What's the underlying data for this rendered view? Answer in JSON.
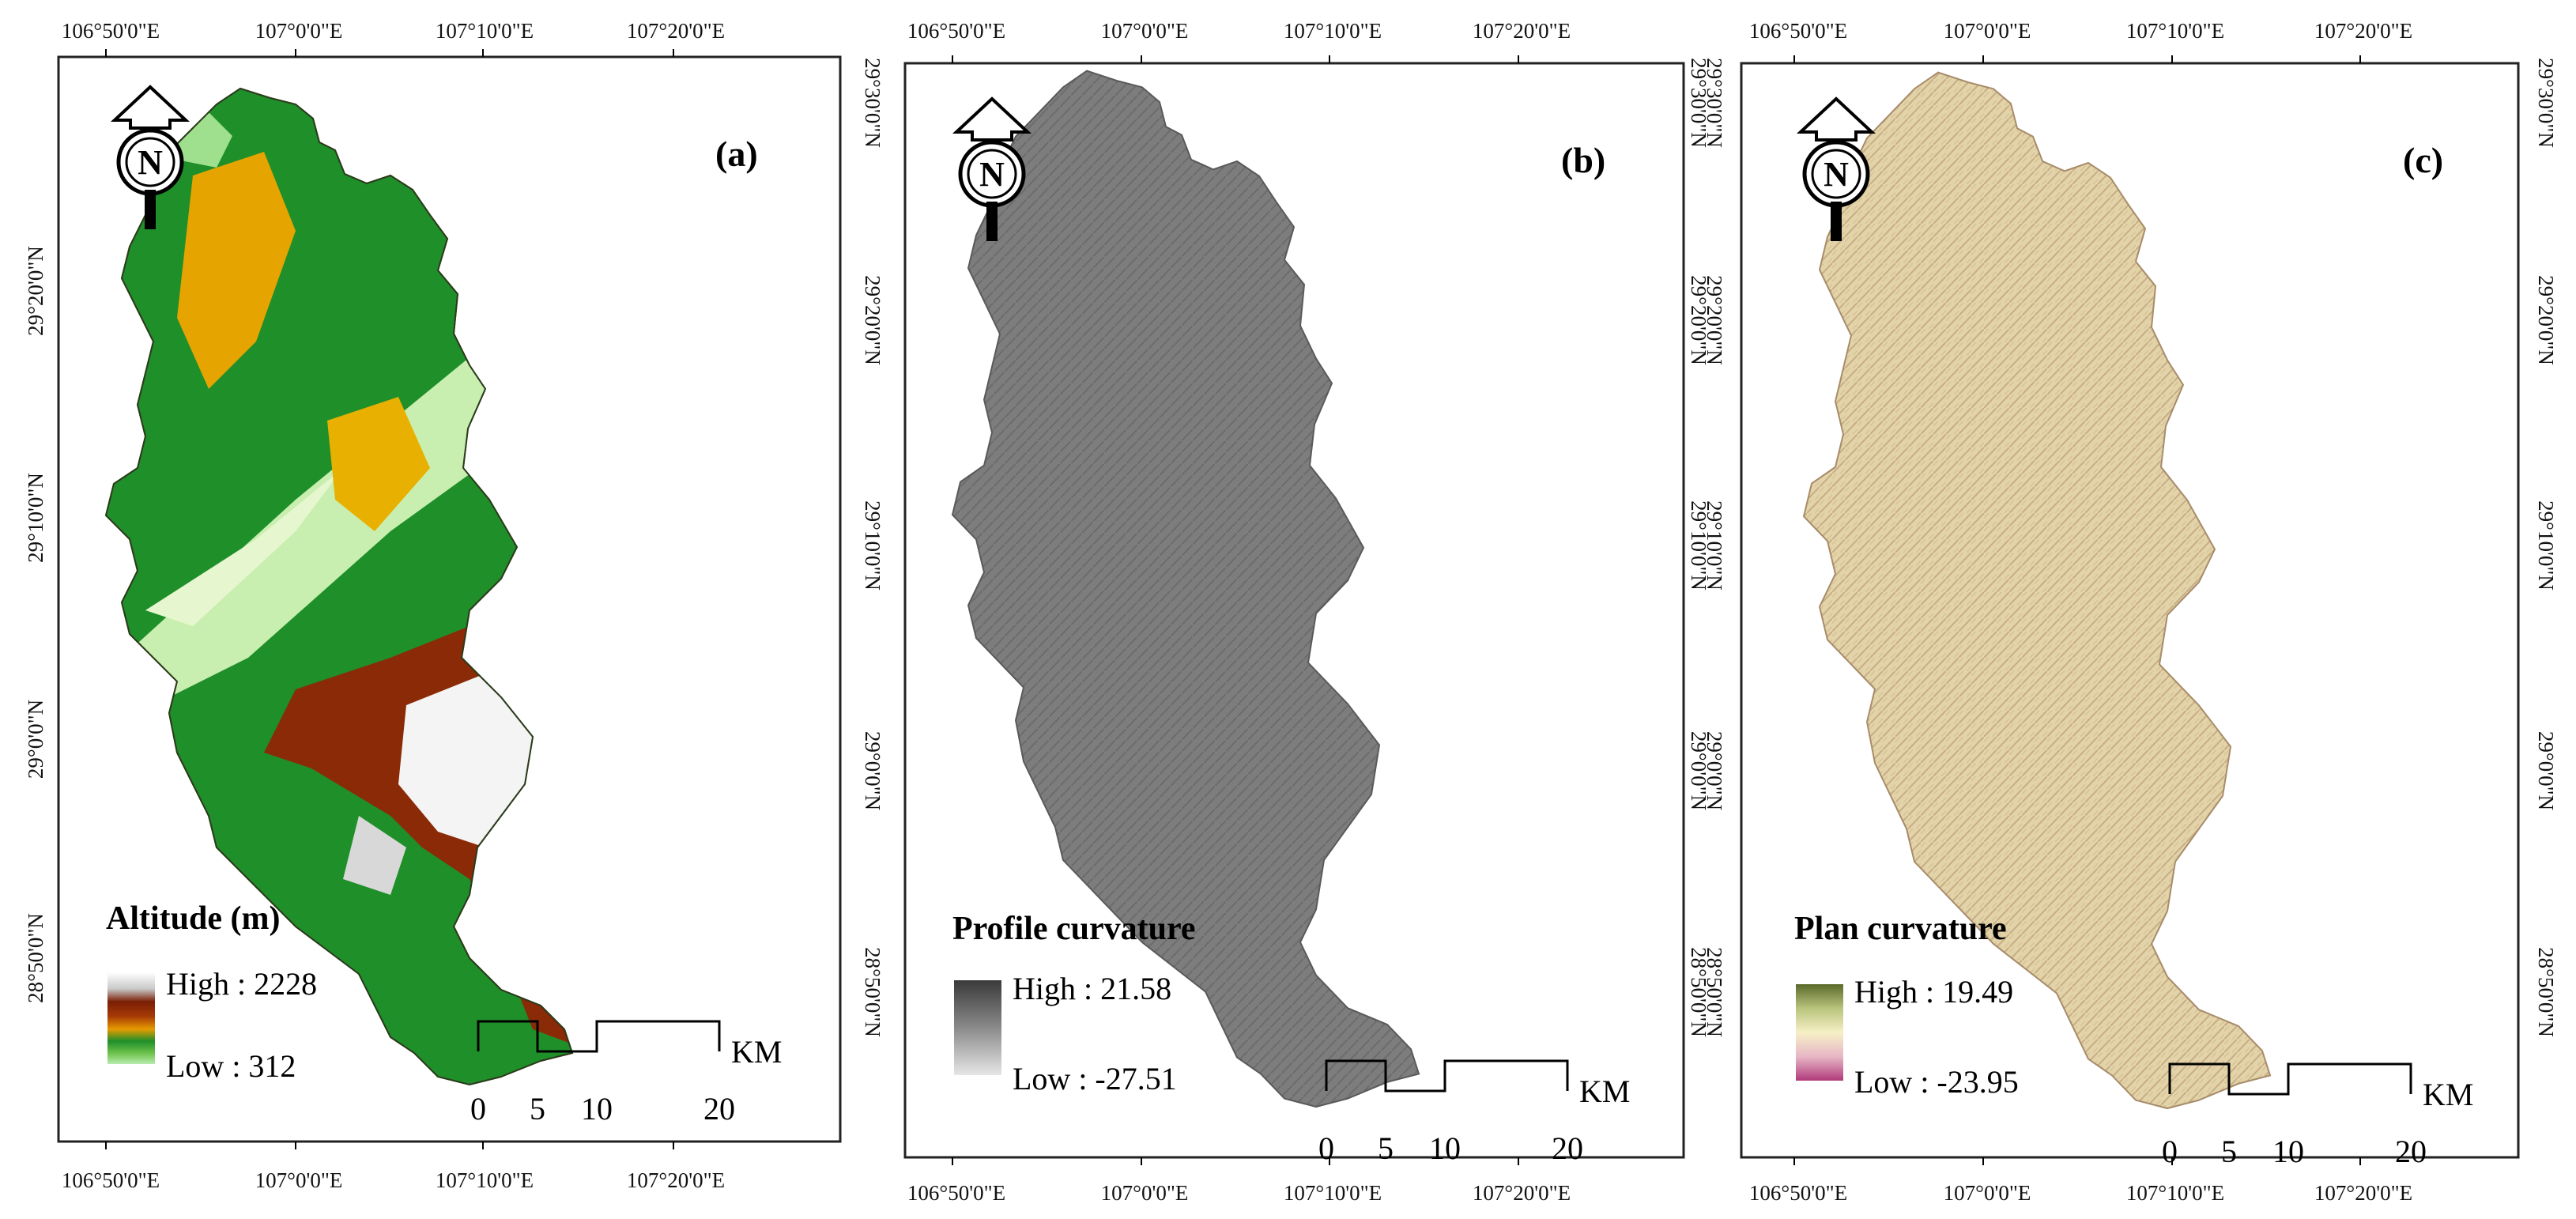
{
  "lon_ticks": [
    "106°50'0\"E",
    "107°0'0\"E",
    "107°10'0\"E",
    "107°20'0\"E"
  ],
  "lat_ticks": [
    "29°30'0\"N",
    "29°20'0\"N",
    "29°10'0\"N",
    "29°0'0\"N",
    "28°50'0\"N"
  ],
  "scale_bar": {
    "labels": [
      "0",
      "5",
      "10",
      "20"
    ],
    "unit": "KM"
  },
  "north_arrow": {
    "letter": "N",
    "icon": "north-arrow-icon"
  },
  "panels": [
    {
      "id": "a",
      "label": "(a)",
      "legend": {
        "title": "Altitude (m)",
        "high": "High : 2228",
        "low": "Low : 312"
      },
      "ramp_colors": [
        "#ffffff",
        "#c9c9c9",
        "#7a1e05",
        "#a63a06",
        "#e69b00",
        "#1f8f2a",
        "#6cc24a",
        "#b9ecb0"
      ]
    },
    {
      "id": "b",
      "label": "(b)",
      "legend": {
        "title": "Profile curvature",
        "high": "High : 21.58",
        "low": "Low : -27.51"
      },
      "ramp_colors": [
        "#3a3a3a",
        "#8a8a8a",
        "#e6e6e6"
      ]
    },
    {
      "id": "c",
      "label": "(c)",
      "legend": {
        "title": "Plan curvature",
        "high": "High : 19.49",
        "low": "Low : -23.95"
      },
      "ramp_colors": [
        "#5a6a2a",
        "#b9c47c",
        "#f6f0c6",
        "#e7b7c6",
        "#b03a7a"
      ]
    }
  ]
}
